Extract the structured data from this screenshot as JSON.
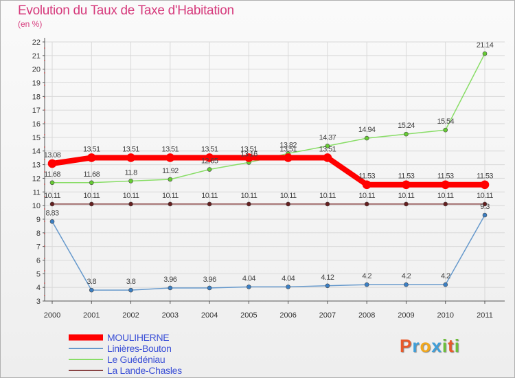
{
  "chart_data": {
    "type": "line",
    "title": "Evolution du Taux de Taxe d'Habitation",
    "subtitle": "(en %)",
    "xlabel": "",
    "ylabel": "",
    "ylim": [
      3,
      22
    ],
    "y_ticks": [
      3,
      4,
      5,
      6,
      7,
      8,
      9,
      10,
      11,
      12,
      13,
      14,
      15,
      16,
      17,
      18,
      19,
      20,
      21,
      22
    ],
    "categories": [
      "2000",
      "2001",
      "2002",
      "2003",
      "2004",
      "2005",
      "2006",
      "2007",
      "2008",
      "2009",
      "2010",
      "2011"
    ],
    "series": [
      {
        "name": "MOULIHERNE",
        "color": "#ff0000",
        "marker": "#ff0000",
        "width": 8,
        "values": [
          13.08,
          13.51,
          13.51,
          13.51,
          13.51,
          13.51,
          13.51,
          13.51,
          11.53,
          11.53,
          11.53,
          11.53
        ],
        "labels": [
          "13.08",
          "13.51",
          "13.51",
          "13.51",
          "13.51",
          "13.51",
          "13.51",
          "13.51",
          "11.53",
          "11.53",
          "11.53",
          "11.53"
        ]
      },
      {
        "name": "Linières-Bouton",
        "color": "#6699cc",
        "marker": "#3b7fc4",
        "width": 1.5,
        "values": [
          8.83,
          3.8,
          3.8,
          3.96,
          3.96,
          4.04,
          4.04,
          4.12,
          4.2,
          4.2,
          4.2,
          9.3
        ],
        "labels": [
          "8.83",
          "3.8",
          "3.8",
          "3.96",
          "3.96",
          "4.04",
          "4.04",
          "4.12",
          "4.2",
          "4.2",
          "4.2",
          "9.3"
        ]
      },
      {
        "name": "Le Guédéniau",
        "color": "#88dd66",
        "marker": "#66cc33",
        "width": 1.5,
        "values": [
          11.68,
          11.68,
          11.8,
          11.92,
          12.65,
          13.16,
          13.82,
          14.37,
          14.94,
          15.24,
          15.54,
          21.14
        ],
        "labels": [
          "11.68",
          "11.68",
          "11.8",
          "11.92",
          "12.65",
          "13.16",
          "13.82",
          "14.37",
          "14.94",
          "15.24",
          "15.54",
          "21.14"
        ]
      },
      {
        "name": "La Lande-Chasles",
        "color": "#884444",
        "marker": "#661f1f",
        "width": 1.5,
        "values": [
          10.11,
          10.11,
          10.11,
          10.11,
          10.11,
          10.11,
          10.11,
          10.11,
          10.11,
          10.11,
          10.11,
          10.11
        ],
        "labels": [
          "10.11",
          "10.11",
          "10.11",
          "10.11",
          "10.11",
          "10.11",
          "10.11",
          "10.11",
          "10.11",
          "10.11",
          "10.11",
          "10.11"
        ]
      }
    ],
    "grid": true,
    "legend_position": "bottom-left"
  },
  "legend": [
    {
      "label": "MOULIHERNE"
    },
    {
      "label": "Linières-Bouton"
    },
    {
      "label": "Le Guédéniau"
    },
    {
      "label": "La Lande-Chasles"
    }
  ],
  "logo": {
    "letters": [
      "P",
      "r",
      "o",
      "x",
      "i",
      "t",
      "i"
    ],
    "colors": [
      "#e8592a",
      "#3f9fd9",
      "#f2a81d",
      "#3f9fd9",
      "#6cbf3a",
      "#e8592a",
      "#6cbf3a"
    ]
  }
}
